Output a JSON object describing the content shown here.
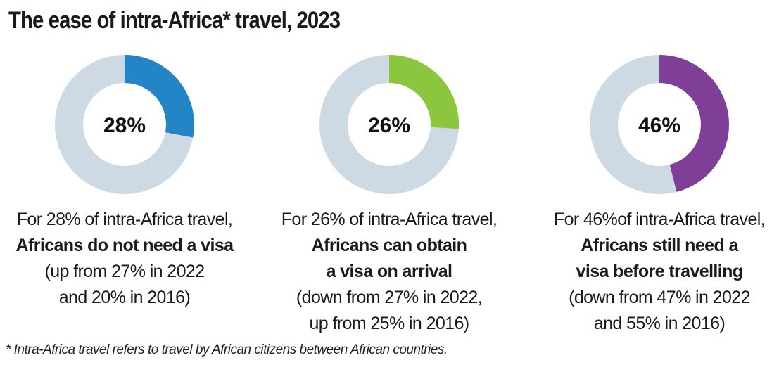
{
  "title": "The ease of intra-Africa* travel, 2023",
  "footnote": "* Intra-Africa travel refers to travel by African citizens between African countries.",
  "colors": {
    "track": "#cdd9e3",
    "visa_free": "#2384c6",
    "visa_on_arrival": "#8cc63f",
    "visa_required": "#7f3f98"
  },
  "chart_data": [
    {
      "type": "pie",
      "variant": "donut",
      "title": "",
      "value": 28,
      "value_label": "28%",
      "color": "#2384c6",
      "caption": {
        "lead": "For 28% of intra-Africa travel,",
        "strong": [
          "Africans do not need a visa"
        ],
        "note": [
          "(up from 27% in 2022",
          "and 20% in 2016)"
        ]
      }
    },
    {
      "type": "pie",
      "variant": "donut",
      "title": "",
      "value": 26,
      "value_label": "26%",
      "color": "#8cc63f",
      "caption": {
        "lead": "For 26% of intra-Africa travel,",
        "strong": [
          "Africans can obtain",
          "a visa on arrival"
        ],
        "note": [
          "(down from 27% in 2022,",
          "up from 25% in 2016)"
        ]
      }
    },
    {
      "type": "pie",
      "variant": "donut",
      "title": "",
      "value": 46,
      "value_label": "46%",
      "color": "#7f3f98",
      "caption": {
        "lead": "For 46%of intra-Africa travel,",
        "strong": [
          "Africans still need a",
          "visa before travelling"
        ],
        "note": [
          "(down from 47% in 2022",
          "and 55% in 2016)"
        ]
      }
    }
  ]
}
